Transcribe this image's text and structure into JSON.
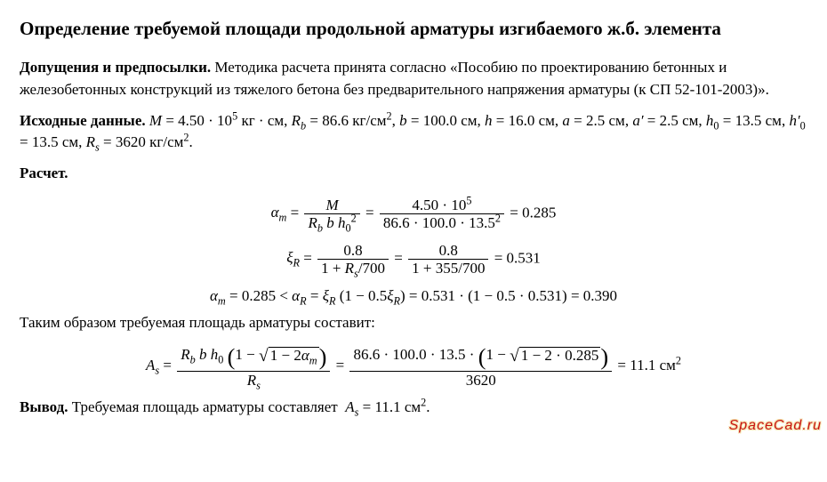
{
  "colors": {
    "background": "#ffffff",
    "text": "#000000",
    "watermark_fill": "#c81414",
    "watermark_outline": "#f5e6b0",
    "rule": "#000000"
  },
  "typography": {
    "body_family": "Times New Roman, serif",
    "title_size_pt": 16,
    "body_size_pt": 13,
    "watermark_family": "Impact, Arial Black, sans-serif",
    "watermark_size_pt": 12
  },
  "title": "Определение требуемой площади продольной арматуры изгибаемого ж.б. элемента",
  "assumptions": {
    "label": "Допущения и предпосылки.",
    "text": "Методика расчета принята согласно «Пособию по проектированию бетонных и железобетонных конструкций из тяжелого бетона без предварительного напряжения арматуры (к СП 52-101-2003)»."
  },
  "initial": {
    "label": "Исходные данные.",
    "M_html": "<span class=\"m\">M</span> = 4.50 · 10<sup>5</sup> кг · см",
    "Rb_html": "<span class=\"m\">R<sub>b</sub></span> = 86.6 кг/см<sup>2</sup>",
    "b_html": "<span class=\"m\">b</span> = 100.0 см",
    "h_html": "<span class=\"m\">h</span> = 16.0 см",
    "a_html": "<span class=\"m\">a</span> = 2.5 см",
    "aprime_html": "<span class=\"m\">a′</span> = 2.5 см",
    "h0_html": "<span class=\"m\">h</span><sub>0</sub> = 13.5 см",
    "h0prime_html": "<span class=\"m\">h′</span><sub>0</sub> = 13.5 см",
    "Rs_html": "<span class=\"m\">R<sub>s</sub></span> = 3620 кг/см<sup>2</sup>"
  },
  "calc_label": "Расчет.",
  "eq_alpha": {
    "lhs": "<span class=\"m\">α<sub>m</sub></span> =",
    "frac1_num": "<span class=\"m\">M</span>",
    "frac1_den": "<span class=\"m\">R<sub>b</sub> b h</span><sub>0</sub><sup>2</sup>",
    "eq": " = ",
    "frac2_num": "4.50 · 10<sup>5</sup>",
    "frac2_den": "86.6 · 100.0 · 13.5<sup>2</sup>",
    "result": " = 0.285"
  },
  "eq_xi": {
    "lhs": "<span class=\"m\">ξ<sub>R</sub></span> =",
    "frac1_num": "0.8",
    "frac1_den": "1 + <span class=\"m\">R<sub>s</sub></span>/700",
    "eq": " = ",
    "frac2_num": "0.8",
    "frac2_den": "1 + 355/700",
    "result": " = 0.531"
  },
  "eq_compare": "<span class=\"m\">α<sub>m</sub></span> = 0.285 &lt; <span class=\"m\">α<sub>R</sub></span> = <span class=\"m\">ξ<sub>R</sub></span> (1 − 0.5<span class=\"m\">ξ<sub>R</sub></span>) = 0.531 · (1 − 0.5 · 0.531) = 0.390",
  "thus_text": "Таким образом требуемая площадь арматуры составит:",
  "eq_As": {
    "lhs": "<span class=\"m\">A<sub>s</sub></span> =",
    "frac1_num_pre": "<span class=\"m\">R<sub>b</sub> b h</span><sub>0</sub> ",
    "frac1_num_paren": "1 − <span class=\"sqrt\"><span class=\"rad\">1 − 2<span class=\"m\">α<sub>m</sub></span></span></span>",
    "frac1_den": "<span class=\"m\">R<sub>s</sub></span>",
    "eq": " = ",
    "frac2_num_pre": "86.6 · 100.0 · 13.5 · ",
    "frac2_num_paren": "1 − <span class=\"sqrt\"><span class=\"rad\">1 − 2 · 0.285</span></span>",
    "frac2_den": "3620",
    "result": " = 11.1 см<sup>2</sup>"
  },
  "conclusion": {
    "label": "Вывод.",
    "text_html": "Требуемая площадь арматуры составляет &nbsp;<span class=\"m\">A<sub>s</sub></span> = 11.1 см<sup>2</sup>."
  },
  "watermark": "SpaceCad.ru"
}
